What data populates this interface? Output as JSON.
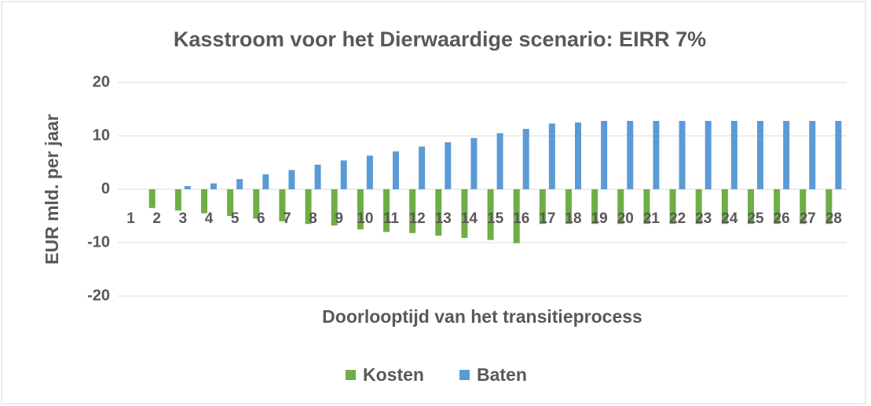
{
  "chart_data": {
    "type": "bar",
    "title": "Kasstroom voor het Dierwaardige scenario: EIRR 7%",
    "y_label": "EUR mld. per jaar",
    "x_label": "Doorlooptijd van het transitieprocess",
    "categories": [
      "1",
      "2",
      "3",
      "4",
      "5",
      "6",
      "7",
      "8",
      "9",
      "10",
      "11",
      "12",
      "13",
      "14",
      "15",
      "16",
      "17",
      "18",
      "19",
      "20",
      "21",
      "22",
      "23",
      "24",
      "25",
      "26",
      "27",
      "28"
    ],
    "series": [
      {
        "name": "Kosten",
        "color": "#70ad47",
        "values": [
          0,
          -3.5,
          -4,
          -4.5,
          -5,
          -5.5,
          -6,
          -6.5,
          -6.8,
          -7.5,
          -8,
          -8.2,
          -8.7,
          -9.1,
          -9.5,
          -10.1,
          -6.5,
          -6.5,
          -6.5,
          -6.5,
          -6.5,
          -6.5,
          -6.5,
          -6.5,
          -6.5,
          -6.5,
          -6.5,
          -6.5
        ]
      },
      {
        "name": "Baten",
        "color": "#5b9bd5",
        "values": [
          0,
          0,
          0.6,
          1.1,
          1.9,
          2.8,
          3.6,
          4.6,
          5.4,
          6.3,
          7.1,
          8,
          8.8,
          9.6,
          10.5,
          11.3,
          12.3,
          12.5,
          12.8,
          12.8,
          12.8,
          12.8,
          12.8,
          12.8,
          12.8,
          12.8,
          12.8,
          12.8
        ]
      }
    ],
    "ylim": [
      -20,
      20
    ],
    "yticks": [
      -20,
      -10,
      0,
      10,
      20
    ],
    "grid": true,
    "legend": "bottom"
  }
}
